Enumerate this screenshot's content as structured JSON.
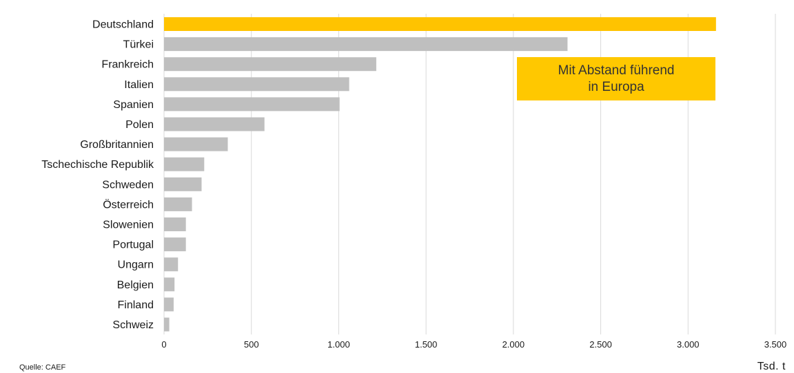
{
  "chart_data": {
    "type": "bar",
    "orientation": "horizontal",
    "categories": [
      "Deutschland",
      "Türkei",
      "Frankreich",
      "Italien",
      "Spanien",
      "Polen",
      "Großbritannien",
      "Tschechische Republik",
      "Schweden",
      "Österreich",
      "Slowenien",
      "Portugal",
      "Ungarn",
      "Belgien",
      "Finland",
      "Schweiz"
    ],
    "values": [
      3160,
      2310,
      1215,
      1060,
      1005,
      575,
      365,
      230,
      215,
      160,
      125,
      125,
      80,
      60,
      55,
      30
    ],
    "xlim": [
      0,
      3500
    ],
    "xticks": [
      0,
      500,
      1000,
      1500,
      2000,
      2500,
      3000,
      3500
    ],
    "xtick_labels": [
      "0",
      "500",
      "1.000",
      "1.500",
      "2.000",
      "2.500",
      "3.000",
      "3.500"
    ],
    "xlabel": "Tsd. t",
    "grid": "vertical",
    "highlight_index": 0
  },
  "colors": {
    "highlight": "#FFC300",
    "bar": "#BFBFBF",
    "grid": "#D9D9D9",
    "callout_bg": "#FFC800"
  },
  "callout": {
    "text": "Mit Abstand führend\nin Europa"
  },
  "source": "Quelle: CAEF"
}
